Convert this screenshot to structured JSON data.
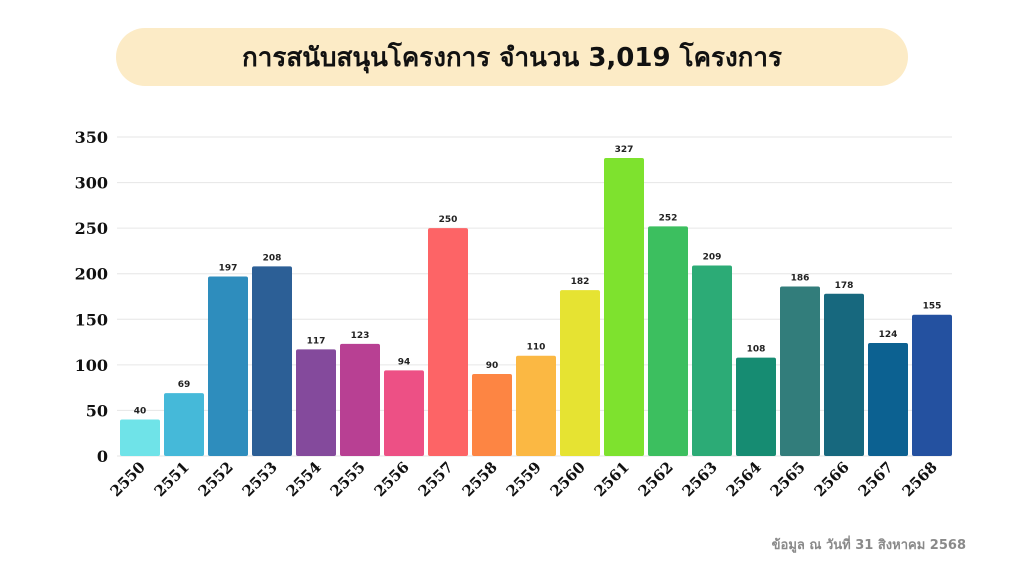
{
  "chart_data": {
    "type": "bar",
    "title": "การสนับสนุนโครงการ จำนวน 3,019 โครงการ",
    "categories": [
      "2550",
      "2551",
      "2552",
      "2553",
      "2554",
      "2555",
      "2556",
      "2557",
      "2558",
      "2559",
      "2560",
      "2561",
      "2562",
      "2563",
      "2564",
      "2565",
      "2566",
      "2567",
      "2568"
    ],
    "values": [
      40,
      69,
      197,
      208,
      117,
      123,
      94,
      250,
      90,
      110,
      182,
      327,
      252,
      209,
      108,
      186,
      178,
      124,
      155
    ],
    "colors": [
      "#6fe3e8",
      "#45b9d9",
      "#2e8dbd",
      "#2c5f96",
      "#844a9c",
      "#b84093",
      "#ed5085",
      "#fd6466",
      "#fd8543",
      "#fbb843",
      "#e6e332",
      "#7ee22e",
      "#3cbf5f",
      "#2cab76",
      "#168c72",
      "#327d7b",
      "#17687e",
      "#0c6191",
      "#2451a0"
    ],
    "yticks": [
      0,
      50,
      100,
      150,
      200,
      250,
      300,
      350
    ],
    "ylim": [
      0,
      350
    ],
    "grid": true,
    "xlabel": "",
    "ylabel": ""
  },
  "footnote": "ข้อมูล ณ วันที่ 31 สิงหาคม 2568"
}
